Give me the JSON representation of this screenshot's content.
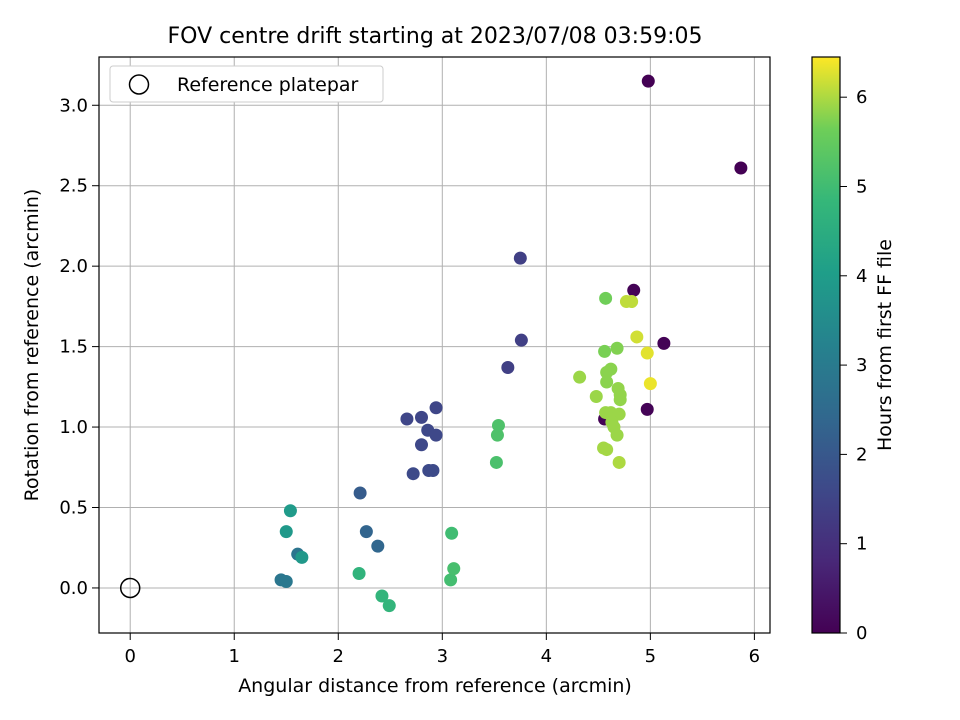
{
  "chart_data": {
    "type": "scatter",
    "title": "FOV centre drift starting at 2023/07/08 03:59:05",
    "xlabel": "Angular distance from reference (arcmin)",
    "ylabel": "Rotation from reference (arcmin)",
    "xlim": [
      -0.3,
      6.15
    ],
    "ylim": [
      -0.28,
      3.3
    ],
    "xticks": [
      0,
      1,
      2,
      3,
      4,
      5,
      6
    ],
    "yticks": [
      0.0,
      0.5,
      1.0,
      1.5,
      2.0,
      2.5,
      3.0
    ],
    "grid": true,
    "legend": {
      "position": "upper-left",
      "label": "Reference platepar"
    },
    "reference_point": {
      "x": 0,
      "y": 0
    },
    "colorbar": {
      "label": "Hours from first FF file",
      "range": [
        0,
        6.45
      ],
      "ticks": [
        0,
        1,
        2,
        3,
        4,
        5,
        6
      ],
      "colormap": "viridis"
    },
    "points": [
      {
        "x": 4.98,
        "y": 3.15,
        "h": 0.0
      },
      {
        "x": 5.87,
        "y": 2.61,
        "h": 0.0
      },
      {
        "x": 4.84,
        "y": 1.85,
        "h": 0.05
      },
      {
        "x": 5.13,
        "y": 1.52,
        "h": 0.05
      },
      {
        "x": 4.97,
        "y": 1.11,
        "h": 0.05
      },
      {
        "x": 4.56,
        "y": 1.05,
        "h": 0.05
      },
      {
        "x": 3.75,
        "y": 2.05,
        "h": 1.4
      },
      {
        "x": 3.76,
        "y": 1.54,
        "h": 1.4
      },
      {
        "x": 3.63,
        "y": 1.37,
        "h": 1.4
      },
      {
        "x": 2.94,
        "y": 1.12,
        "h": 1.55
      },
      {
        "x": 2.66,
        "y": 1.05,
        "h": 1.55
      },
      {
        "x": 2.8,
        "y": 1.06,
        "h": 1.55
      },
      {
        "x": 2.86,
        "y": 0.98,
        "h": 1.6
      },
      {
        "x": 2.94,
        "y": 0.95,
        "h": 1.6
      },
      {
        "x": 2.8,
        "y": 0.89,
        "h": 1.6
      },
      {
        "x": 2.72,
        "y": 0.71,
        "h": 1.65
      },
      {
        "x": 2.87,
        "y": 0.73,
        "h": 1.65
      },
      {
        "x": 2.91,
        "y": 0.73,
        "h": 1.65
      },
      {
        "x": 2.21,
        "y": 0.59,
        "h": 2.1
      },
      {
        "x": 2.27,
        "y": 0.35,
        "h": 2.35
      },
      {
        "x": 2.38,
        "y": 0.26,
        "h": 2.4
      },
      {
        "x": 1.61,
        "y": 0.21,
        "h": 2.8
      },
      {
        "x": 1.45,
        "y": 0.05,
        "h": 2.85
      },
      {
        "x": 1.5,
        "y": 0.04,
        "h": 2.9
      },
      {
        "x": 1.65,
        "y": 0.19,
        "h": 3.85
      },
      {
        "x": 1.5,
        "y": 0.35,
        "h": 3.9
      },
      {
        "x": 1.54,
        "y": 0.48,
        "h": 3.95
      },
      {
        "x": 2.2,
        "y": 0.09,
        "h": 4.7
      },
      {
        "x": 2.42,
        "y": -0.05,
        "h": 4.75
      },
      {
        "x": 2.49,
        "y": -0.11,
        "h": 4.75
      },
      {
        "x": 3.09,
        "y": 0.34,
        "h": 5.0
      },
      {
        "x": 3.08,
        "y": 0.05,
        "h": 5.05
      },
      {
        "x": 3.11,
        "y": 0.12,
        "h": 5.1
      },
      {
        "x": 3.52,
        "y": 0.78,
        "h": 5.15
      },
      {
        "x": 3.53,
        "y": 0.95,
        "h": 5.2
      },
      {
        "x": 3.54,
        "y": 1.01,
        "h": 5.2
      },
      {
        "x": 4.57,
        "y": 1.8,
        "h": 5.65
      },
      {
        "x": 4.56,
        "y": 1.47,
        "h": 5.7
      },
      {
        "x": 4.68,
        "y": 1.49,
        "h": 5.75
      },
      {
        "x": 4.62,
        "y": 1.36,
        "h": 5.8
      },
      {
        "x": 4.58,
        "y": 1.34,
        "h": 5.8
      },
      {
        "x": 4.58,
        "y": 1.28,
        "h": 5.8
      },
      {
        "x": 4.69,
        "y": 1.24,
        "h": 5.85
      },
      {
        "x": 4.71,
        "y": 1.17,
        "h": 5.85
      },
      {
        "x": 4.71,
        "y": 1.2,
        "h": 5.85
      },
      {
        "x": 4.32,
        "y": 1.31,
        "h": 5.9
      },
      {
        "x": 4.48,
        "y": 1.19,
        "h": 5.9
      },
      {
        "x": 4.57,
        "y": 1.09,
        "h": 5.9
      },
      {
        "x": 4.62,
        "y": 1.09,
        "h": 5.9
      },
      {
        "x": 4.7,
        "y": 1.08,
        "h": 5.9
      },
      {
        "x": 4.63,
        "y": 1.03,
        "h": 5.9
      },
      {
        "x": 4.65,
        "y": 1.0,
        "h": 5.9
      },
      {
        "x": 4.68,
        "y": 0.95,
        "h": 5.9
      },
      {
        "x": 4.55,
        "y": 0.87,
        "h": 5.95
      },
      {
        "x": 4.58,
        "y": 0.86,
        "h": 5.95
      },
      {
        "x": 4.7,
        "y": 0.78,
        "h": 6.0
      },
      {
        "x": 4.77,
        "y": 1.78,
        "h": 6.1
      },
      {
        "x": 4.82,
        "y": 1.78,
        "h": 6.1
      },
      {
        "x": 4.87,
        "y": 1.56,
        "h": 6.2
      },
      {
        "x": 4.97,
        "y": 1.46,
        "h": 6.3
      },
      {
        "x": 5.0,
        "y": 1.27,
        "h": 6.35
      }
    ]
  }
}
